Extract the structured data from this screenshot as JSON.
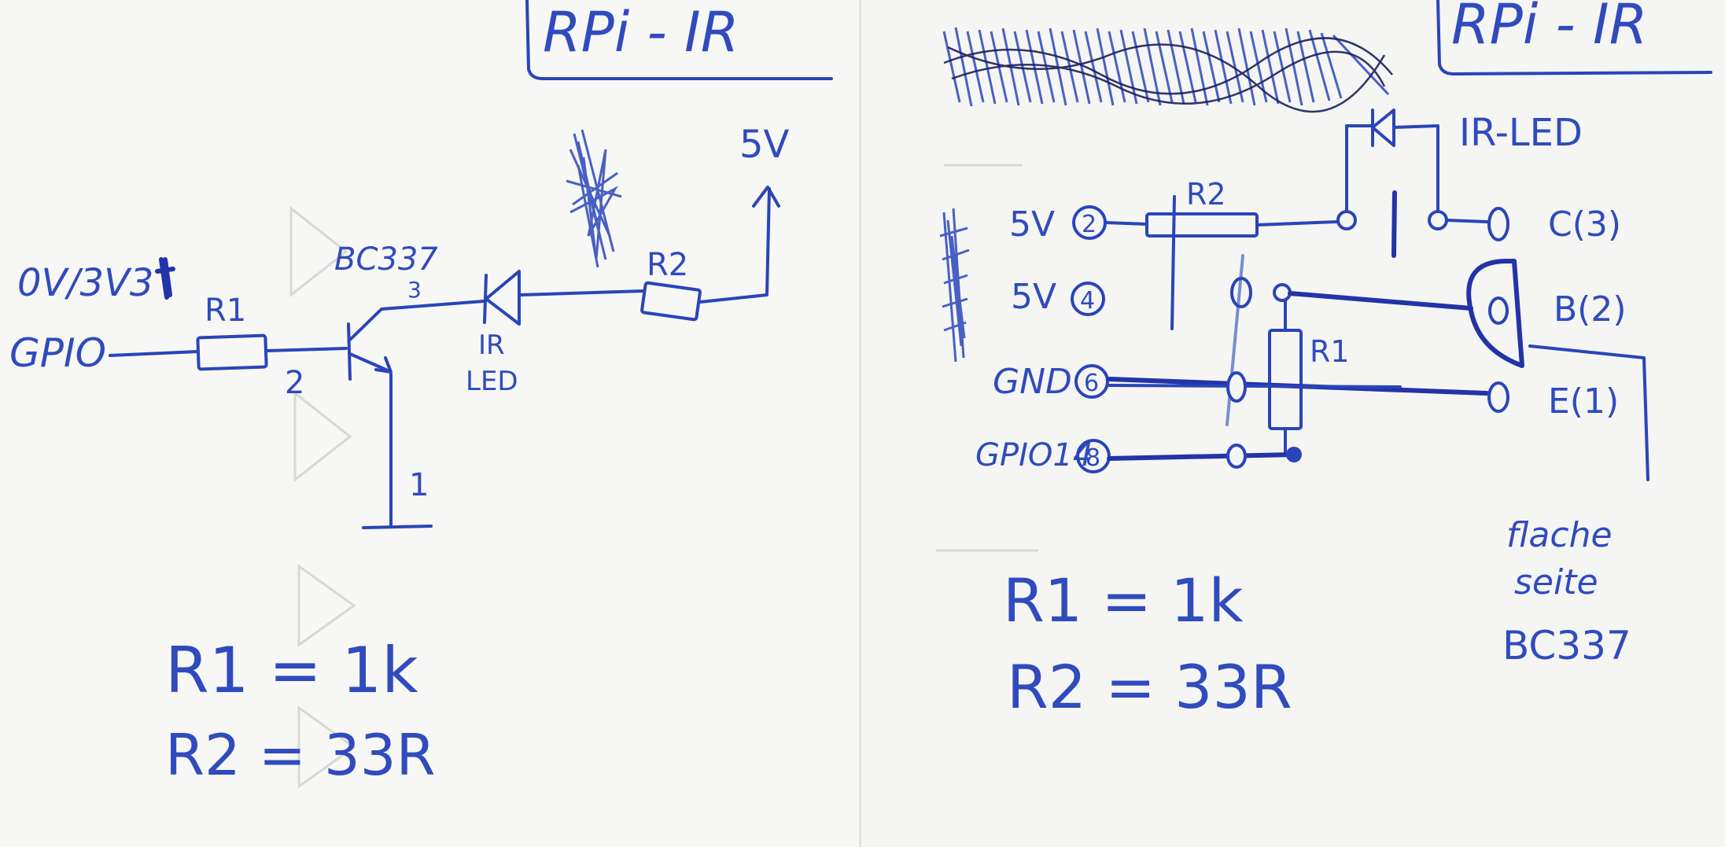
{
  "left_page": {
    "title": "RPi - IR",
    "input_label": "0V/3V3",
    "gpio_label": "GPIO",
    "r1_label": "R1",
    "transistor_label": "BC337",
    "pin_base": "2",
    "pin_collector": "3",
    "pin_emitter": "1",
    "led_label_line1": "IR",
    "led_label_line2": "LED",
    "r2_label": "R2",
    "supply_label": "5V",
    "eq_r1": "R1 = 1k",
    "eq_r2": "R2 = 33R"
  },
  "right_page": {
    "title": "RPi - IR",
    "led_label": "IR-LED",
    "r2_label": "R2",
    "r1_label": "R1",
    "rows": [
      {
        "name": "5V",
        "pin": "2"
      },
      {
        "name": "5V",
        "pin": "4"
      },
      {
        "name": "GND",
        "pin": "6"
      },
      {
        "name": "GPIO14",
        "pin": "8"
      }
    ],
    "transistor_pins": [
      {
        "label": "C(3)"
      },
      {
        "label": "B(2)"
      },
      {
        "label": "E(1)"
      }
    ],
    "note": [
      "flache",
      "seite",
      "BC337"
    ],
    "eq_r1": "R1 = 1k",
    "eq_r2": "R2 = 33R"
  },
  "colors": {
    "ink": "#2a45b8",
    "paper": "#f5f5f3"
  }
}
